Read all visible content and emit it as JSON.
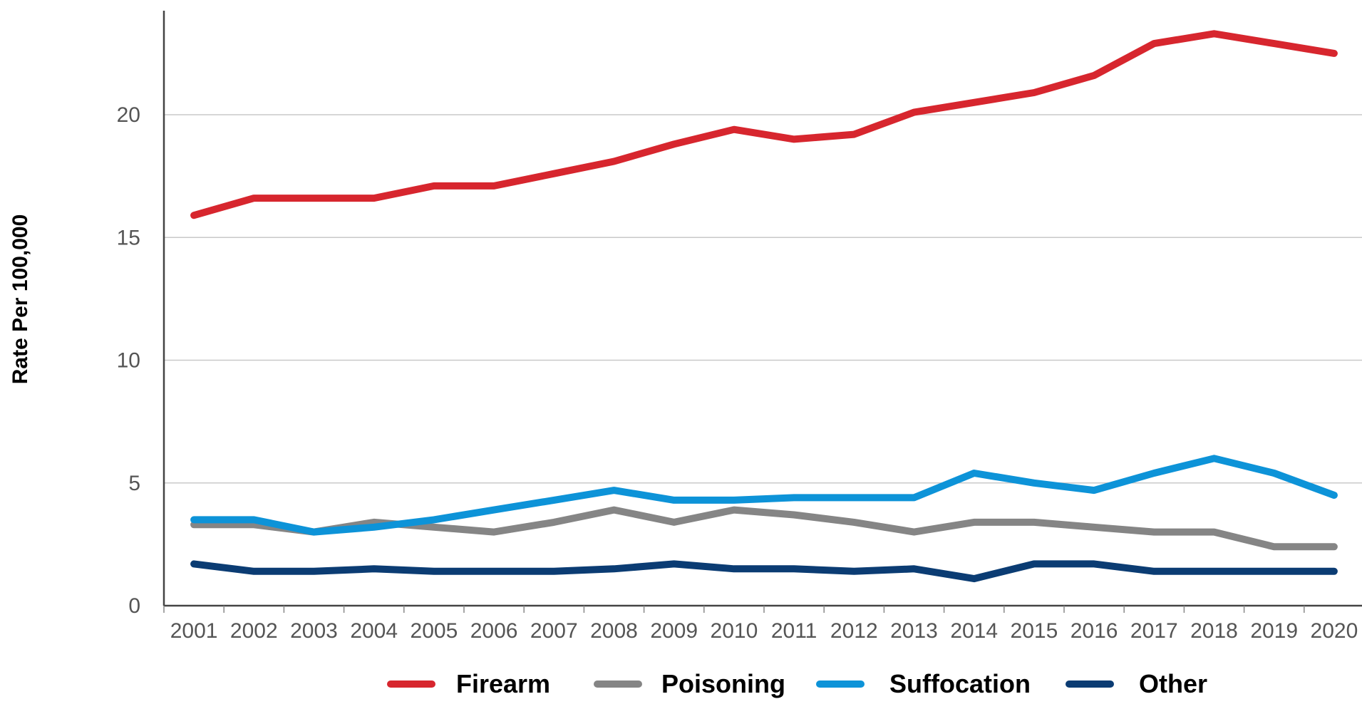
{
  "chart_data": {
    "type": "line",
    "title": "",
    "xlabel": "",
    "ylabel": "Rate Per 100,000",
    "x": [
      2001,
      2002,
      2003,
      2004,
      2005,
      2006,
      2007,
      2008,
      2009,
      2010,
      2011,
      2012,
      2013,
      2014,
      2015,
      2016,
      2017,
      2018,
      2019,
      2020
    ],
    "x_tick_labels": [
      "2001",
      "2002",
      "2003",
      "2004",
      "2005",
      "2006",
      "2007",
      "2008",
      "2009",
      "2010",
      "2011",
      "2012",
      "2013",
      "2014",
      "2015",
      "2016",
      "2017",
      "2018",
      "2019",
      "2020"
    ],
    "y_ticks": [
      0,
      5,
      10,
      15,
      20
    ],
    "y_tick_labels": [
      "0",
      "5",
      "10",
      "15",
      "20"
    ],
    "ylim": [
      0,
      24
    ],
    "grid": true,
    "legend_position": "bottom",
    "series": [
      {
        "name": "Firearm",
        "color": "#d7262e",
        "values": [
          15.9,
          16.6,
          16.6,
          16.6,
          17.1,
          17.1,
          17.6,
          18.1,
          18.8,
          19.4,
          19.0,
          19.2,
          20.1,
          20.5,
          20.9,
          21.6,
          22.9,
          23.3,
          22.9,
          22.5
        ]
      },
      {
        "name": "Poisoning",
        "color": "#858585",
        "values": [
          3.3,
          3.3,
          3.0,
          3.4,
          3.2,
          3.0,
          3.4,
          3.9,
          3.4,
          3.9,
          3.7,
          3.4,
          3.0,
          3.4,
          3.4,
          3.2,
          3.0,
          3.0,
          2.4,
          2.4
        ]
      },
      {
        "name": "Suffocation",
        "color": "#0d93d8",
        "values": [
          3.5,
          3.5,
          3.0,
          3.2,
          3.5,
          3.9,
          4.3,
          4.7,
          4.3,
          4.3,
          4.4,
          4.4,
          4.4,
          5.4,
          5.0,
          4.7,
          5.4,
          6.0,
          5.4,
          4.5
        ]
      },
      {
        "name": "Other",
        "color": "#0b3c73",
        "values": [
          1.7,
          1.4,
          1.4,
          1.5,
          1.4,
          1.4,
          1.4,
          1.5,
          1.7,
          1.5,
          1.5,
          1.4,
          1.5,
          1.1,
          1.7,
          1.7,
          1.4,
          1.4,
          1.4,
          1.4
        ]
      }
    ]
  }
}
